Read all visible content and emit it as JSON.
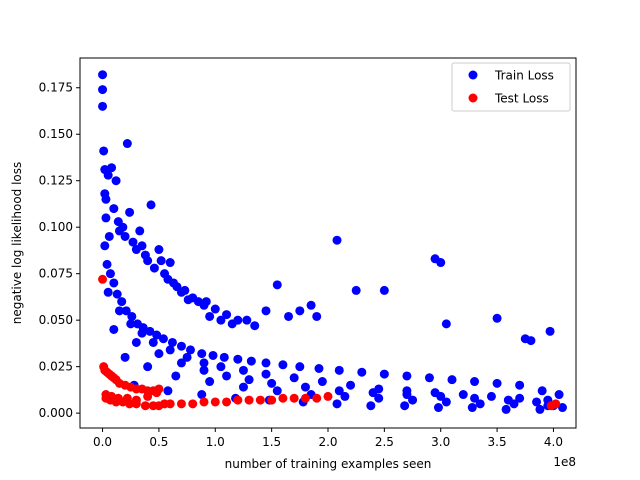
{
  "chart_data": {
    "type": "scatter",
    "title": "",
    "xlabel": "number of training examples seen",
    "ylabel": "negative log likelihood loss",
    "x_multiplier_label": "1e8",
    "xlim": [
      -0.2,
      4.2
    ],
    "ylim": [
      -0.008,
      0.191
    ],
    "x_ticks": [
      0.0,
      0.5,
      1.0,
      1.5,
      2.0,
      2.5,
      3.0,
      3.5,
      4.0
    ],
    "x_tick_labels": [
      "0.0",
      "0.5",
      "1.0",
      "1.5",
      "2.0",
      "2.5",
      "3.0",
      "3.5",
      "4.0"
    ],
    "y_ticks": [
      0.0,
      0.025,
      0.05,
      0.075,
      0.1,
      0.125,
      0.15,
      0.175
    ],
    "y_tick_labels": [
      "0.000",
      "0.025",
      "0.050",
      "0.075",
      "0.100",
      "0.125",
      "0.150",
      "0.175"
    ],
    "grid": false,
    "legend_position": "top-right",
    "series": [
      {
        "name": "Train Loss",
        "color": "#0000ff",
        "x": [
          0.0,
          0.0,
          0.0,
          0.01,
          0.02,
          0.02,
          0.03,
          0.03,
          0.05,
          0.06,
          0.08,
          0.1,
          0.12,
          0.14,
          0.15,
          0.18,
          0.2,
          0.22,
          0.24,
          0.27,
          0.3,
          0.33,
          0.35,
          0.38,
          0.4,
          0.43,
          0.46,
          0.5,
          0.52,
          0.55,
          0.58,
          0.6,
          0.63,
          0.66,
          0.7,
          0.73,
          0.76,
          0.8,
          0.85,
          0.9,
          0.92,
          0.95,
          1.0,
          1.05,
          1.1,
          1.15,
          1.2,
          1.28,
          1.35,
          1.45,
          1.55,
          1.65,
          1.75,
          1.85,
          1.9,
          2.08,
          2.25,
          2.5,
          2.95,
          3.0,
          3.05,
          3.5,
          3.75,
          3.8,
          3.97,
          4.0,
          0.02,
          0.04,
          0.07,
          0.1,
          0.13,
          0.17,
          0.21,
          0.26,
          0.31,
          0.36,
          0.42,
          0.48,
          0.54,
          0.62,
          0.7,
          0.78,
          0.88,
          0.98,
          1.08,
          1.2,
          1.32,
          1.45,
          1.6,
          1.75,
          1.92,
          2.1,
          2.3,
          2.5,
          2.7,
          2.9,
          3.1,
          3.3,
          3.5,
          3.7,
          3.9,
          4.05,
          0.05,
          0.15,
          0.25,
          0.35,
          0.45,
          0.6,
          0.75,
          0.9,
          1.05,
          1.25,
          1.45,
          1.7,
          1.95,
          2.2,
          2.45,
          2.7,
          2.95,
          3.2,
          3.45,
          3.7,
          3.95,
          0.1,
          0.3,
          0.5,
          0.7,
          0.9,
          1.1,
          1.3,
          1.5,
          1.8,
          2.1,
          2.4,
          2.7,
          3.0,
          3.3,
          3.6,
          3.85,
          4.08,
          0.2,
          0.4,
          0.65,
          0.95,
          1.25,
          1.55,
          1.85,
          2.15,
          2.45,
          2.75,
          3.05,
          3.35,
          3.65,
          3.95,
          0.08,
          0.28,
          0.58,
          0.88,
          1.18,
          1.48,
          1.78,
          2.08,
          2.38,
          2.68,
          2.98,
          3.28,
          3.58,
          3.88
        ],
        "y": [
          0.182,
          0.174,
          0.165,
          0.141,
          0.131,
          0.118,
          0.115,
          0.105,
          0.128,
          0.095,
          0.132,
          0.11,
          0.125,
          0.103,
          0.098,
          0.1,
          0.095,
          0.145,
          0.108,
          0.092,
          0.088,
          0.098,
          0.09,
          0.085,
          0.082,
          0.112,
          0.078,
          0.088,
          0.082,
          0.075,
          0.072,
          0.081,
          0.07,
          0.068,
          0.065,
          0.066,
          0.061,
          0.062,
          0.06,
          0.058,
          0.06,
          0.052,
          0.056,
          0.05,
          0.053,
          0.048,
          0.05,
          0.05,
          0.047,
          0.055,
          0.069,
          0.052,
          0.055,
          0.058,
          0.052,
          0.093,
          0.066,
          0.066,
          0.083,
          0.081,
          0.048,
          0.051,
          0.04,
          0.039,
          0.044,
          0.004,
          0.09,
          0.08,
          0.075,
          0.07,
          0.064,
          0.06,
          0.055,
          0.052,
          0.048,
          0.046,
          0.044,
          0.042,
          0.04,
          0.038,
          0.036,
          0.034,
          0.032,
          0.031,
          0.03,
          0.029,
          0.028,
          0.027,
          0.026,
          0.025,
          0.024,
          0.023,
          0.022,
          0.021,
          0.02,
          0.019,
          0.018,
          0.017,
          0.016,
          0.015,
          0.012,
          0.01,
          0.065,
          0.055,
          0.048,
          0.043,
          0.038,
          0.034,
          0.03,
          0.027,
          0.025,
          0.023,
          0.021,
          0.019,
          0.017,
          0.015,
          0.013,
          0.012,
          0.011,
          0.01,
          0.009,
          0.008,
          0.007,
          0.045,
          0.038,
          0.032,
          0.027,
          0.023,
          0.02,
          0.018,
          0.016,
          0.014,
          0.012,
          0.011,
          0.01,
          0.009,
          0.008,
          0.007,
          0.006,
          0.003,
          0.03,
          0.025,
          0.02,
          0.017,
          0.014,
          0.012,
          0.01,
          0.009,
          0.008,
          0.007,
          0.006,
          0.005,
          0.005,
          0.004,
          0.02,
          0.015,
          0.012,
          0.01,
          0.008,
          0.007,
          0.006,
          0.005,
          0.004,
          0.004,
          0.003,
          0.003,
          0.002,
          0.002
        ]
      },
      {
        "name": "Test Loss",
        "color": "#ff0000",
        "x": [
          0.0,
          0.01,
          0.02,
          0.04,
          0.06,
          0.08,
          0.1,
          0.12,
          0.15,
          0.2,
          0.25,
          0.3,
          0.35,
          0.4,
          0.45,
          0.5,
          0.55,
          0.6,
          0.7,
          0.8,
          0.9,
          1.0,
          1.1,
          1.2,
          1.3,
          1.4,
          1.5,
          1.6,
          1.7,
          1.8,
          1.9,
          2.0,
          0.03,
          0.07,
          0.12,
          0.18,
          0.24,
          0.3,
          0.38,
          0.45,
          0.5,
          0.03,
          0.08,
          0.14,
          0.22,
          0.3,
          0.4,
          0.48,
          3.98,
          4.02
        ],
        "y": [
          0.072,
          0.025,
          0.023,
          0.022,
          0.021,
          0.02,
          0.019,
          0.018,
          0.016,
          0.015,
          0.014,
          0.013,
          0.013,
          0.012,
          0.012,
          0.013,
          0.005,
          0.005,
          0.005,
          0.005,
          0.006,
          0.006,
          0.006,
          0.007,
          0.007,
          0.007,
          0.007,
          0.008,
          0.008,
          0.008,
          0.008,
          0.009,
          0.008,
          0.007,
          0.006,
          0.006,
          0.005,
          0.005,
          0.004,
          0.004,
          0.004,
          0.01,
          0.009,
          0.008,
          0.008,
          0.007,
          0.009,
          0.011,
          0.004,
          0.005
        ]
      }
    ]
  }
}
